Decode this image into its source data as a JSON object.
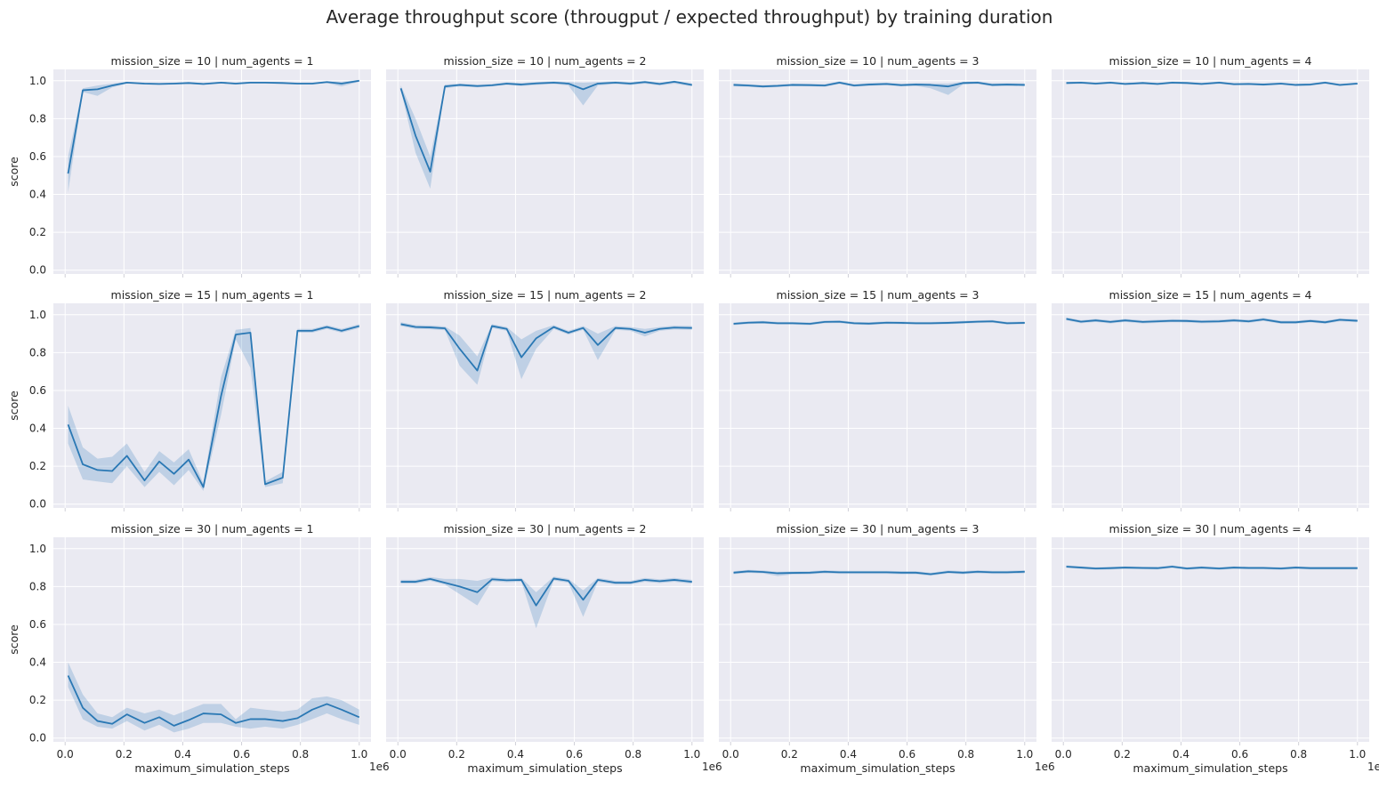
{
  "title": "Average throughput score (througput / expected throughput) by training duration",
  "colors": {
    "line": "#2a78b4",
    "band": "#2a78b4",
    "panel_bg": "#eaeaf2",
    "grid": "#ffffff"
  },
  "chart_data": {
    "type": "line",
    "xlabel": "maximum_simulation_steps",
    "ylabel": "score",
    "x_offset_label": "1e6",
    "xlim": [
      -0.04,
      1.04
    ],
    "ylim": [
      -0.02,
      1.06
    ],
    "x_ticks": [
      0.0,
      0.2,
      0.4,
      0.6,
      0.8,
      1.0
    ],
    "x_tick_labels": [
      "0.0",
      "0.2",
      "0.4",
      "0.6",
      "0.8",
      "1.0"
    ],
    "y_ticks": [
      0.0,
      0.2,
      0.4,
      0.6,
      0.8,
      1.0
    ],
    "y_tick_labels": [
      "0.0",
      "0.2",
      "0.4",
      "0.6",
      "0.8",
      "1.0"
    ],
    "x": [
      0.01,
      0.06,
      0.11,
      0.16,
      0.21,
      0.27,
      0.32,
      0.37,
      0.42,
      0.47,
      0.53,
      0.58,
      0.63,
      0.68,
      0.74,
      0.79,
      0.84,
      0.89,
      0.94,
      1.0
    ],
    "grid": true,
    "panels": [
      {
        "title": "mission_size = 10 | num_agents = 1",
        "y": [
          0.51,
          0.95,
          0.955,
          0.975,
          0.99,
          0.985,
          0.983,
          0.985,
          0.988,
          0.983,
          0.99,
          0.985,
          0.99,
          0.99,
          0.988,
          0.985,
          0.985,
          0.993,
          0.985,
          1.0
        ],
        "lo": [
          0.41,
          0.94,
          0.92,
          0.965,
          0.985,
          0.98,
          0.978,
          0.98,
          0.983,
          0.978,
          0.985,
          0.98,
          0.985,
          0.985,
          0.983,
          0.98,
          0.98,
          0.988,
          0.97,
          0.995
        ],
        "hi": [
          0.6,
          0.96,
          0.975,
          0.985,
          0.995,
          0.99,
          0.988,
          0.99,
          0.993,
          0.988,
          0.995,
          0.99,
          0.995,
          0.995,
          0.993,
          0.99,
          0.99,
          0.998,
          0.995,
          1.005
        ]
      },
      {
        "title": "mission_size = 10 | num_agents = 2",
        "y": [
          0.96,
          0.71,
          0.52,
          0.97,
          0.978,
          0.972,
          0.976,
          0.985,
          0.98,
          0.986,
          0.99,
          0.985,
          0.955,
          0.985,
          0.99,
          0.985,
          0.993,
          0.983,
          0.995,
          0.978
        ],
        "lo": [
          0.95,
          0.62,
          0.43,
          0.96,
          0.97,
          0.965,
          0.97,
          0.978,
          0.972,
          0.978,
          0.983,
          0.975,
          0.87,
          0.975,
          0.983,
          0.977,
          0.985,
          0.975,
          0.985,
          0.97
        ],
        "hi": [
          0.975,
          0.8,
          0.6,
          0.98,
          0.985,
          0.98,
          0.983,
          0.992,
          0.988,
          0.993,
          0.997,
          0.993,
          0.99,
          0.993,
          0.997,
          0.993,
          1.0,
          0.99,
          1.0,
          0.986
        ]
      },
      {
        "title": "mission_size = 10 | num_agents = 3",
        "y": [
          0.978,
          0.975,
          0.97,
          0.973,
          0.978,
          0.977,
          0.975,
          0.99,
          0.975,
          0.98,
          0.983,
          0.977,
          0.98,
          0.978,
          0.97,
          0.988,
          0.99,
          0.978,
          0.98,
          0.978
        ],
        "lo": [
          0.97,
          0.968,
          0.963,
          0.966,
          0.971,
          0.97,
          0.968,
          0.983,
          0.968,
          0.973,
          0.976,
          0.97,
          0.973,
          0.96,
          0.925,
          0.98,
          0.983,
          0.97,
          0.973,
          0.97
        ],
        "hi": [
          0.986,
          0.982,
          0.977,
          0.98,
          0.985,
          0.984,
          0.982,
          0.997,
          0.982,
          0.987,
          0.99,
          0.984,
          0.987,
          0.986,
          0.985,
          0.995,
          0.997,
          0.986,
          0.987,
          0.986
        ]
      },
      {
        "title": "mission_size = 10 | num_agents = 4",
        "y": [
          0.988,
          0.99,
          0.985,
          0.99,
          0.983,
          0.988,
          0.983,
          0.99,
          0.988,
          0.983,
          0.99,
          0.982,
          0.983,
          0.98,
          0.985,
          0.978,
          0.98,
          0.99,
          0.978,
          0.985
        ],
        "lo": [
          0.982,
          0.984,
          0.979,
          0.984,
          0.977,
          0.982,
          0.977,
          0.984,
          0.982,
          0.977,
          0.984,
          0.976,
          0.977,
          0.974,
          0.979,
          0.972,
          0.974,
          0.984,
          0.972,
          0.979
        ],
        "hi": [
          0.994,
          0.996,
          0.991,
          0.996,
          0.989,
          0.994,
          0.989,
          0.996,
          0.994,
          0.989,
          0.996,
          0.988,
          0.989,
          0.986,
          0.991,
          0.984,
          0.986,
          0.996,
          0.984,
          0.991
        ]
      },
      {
        "title": "mission_size = 15 | num_agents = 1",
        "y": [
          0.42,
          0.21,
          0.18,
          0.175,
          0.255,
          0.125,
          0.225,
          0.16,
          0.235,
          0.09,
          0.57,
          0.895,
          0.905,
          0.105,
          0.14,
          0.915,
          0.915,
          0.935,
          0.915,
          0.94
        ],
        "lo": [
          0.32,
          0.13,
          0.12,
          0.11,
          0.2,
          0.09,
          0.17,
          0.1,
          0.18,
          0.07,
          0.47,
          0.87,
          0.72,
          0.09,
          0.11,
          0.905,
          0.905,
          0.925,
          0.905,
          0.93
        ],
        "hi": [
          0.52,
          0.3,
          0.24,
          0.25,
          0.32,
          0.17,
          0.28,
          0.22,
          0.29,
          0.11,
          0.67,
          0.92,
          0.93,
          0.12,
          0.17,
          0.925,
          0.925,
          0.945,
          0.925,
          0.95
        ]
      },
      {
        "title": "mission_size = 15 | num_agents = 2",
        "y": [
          0.95,
          0.935,
          0.933,
          0.928,
          0.82,
          0.705,
          0.94,
          0.925,
          0.775,
          0.875,
          0.935,
          0.905,
          0.93,
          0.84,
          0.93,
          0.925,
          0.905,
          0.925,
          0.932,
          0.93
        ],
        "lo": [
          0.94,
          0.925,
          0.923,
          0.918,
          0.73,
          0.63,
          0.93,
          0.915,
          0.66,
          0.82,
          0.925,
          0.895,
          0.92,
          0.76,
          0.92,
          0.915,
          0.885,
          0.915,
          0.922,
          0.92
        ],
        "hi": [
          0.96,
          0.945,
          0.943,
          0.938,
          0.89,
          0.78,
          0.95,
          0.935,
          0.87,
          0.915,
          0.945,
          0.915,
          0.94,
          0.9,
          0.94,
          0.935,
          0.925,
          0.935,
          0.942,
          0.94
        ]
      },
      {
        "title": "mission_size = 15 | num_agents = 3",
        "y": [
          0.952,
          0.958,
          0.96,
          0.955,
          0.955,
          0.952,
          0.962,
          0.963,
          0.955,
          0.953,
          0.958,
          0.957,
          0.955,
          0.955,
          0.957,
          0.96,
          0.963,
          0.965,
          0.955,
          0.957
        ],
        "lo": [
          0.945,
          0.951,
          0.953,
          0.948,
          0.948,
          0.945,
          0.955,
          0.956,
          0.948,
          0.946,
          0.951,
          0.95,
          0.948,
          0.948,
          0.95,
          0.953,
          0.956,
          0.958,
          0.948,
          0.95
        ],
        "hi": [
          0.959,
          0.965,
          0.967,
          0.962,
          0.962,
          0.959,
          0.969,
          0.97,
          0.962,
          0.96,
          0.965,
          0.964,
          0.962,
          0.962,
          0.964,
          0.967,
          0.97,
          0.972,
          0.962,
          0.964
        ]
      },
      {
        "title": "mission_size = 15 | num_agents = 4",
        "y": [
          0.978,
          0.963,
          0.97,
          0.962,
          0.97,
          0.962,
          0.965,
          0.968,
          0.967,
          0.963,
          0.965,
          0.97,
          0.965,
          0.975,
          0.96,
          0.96,
          0.967,
          0.96,
          0.973,
          0.968
        ],
        "lo": [
          0.97,
          0.955,
          0.962,
          0.954,
          0.962,
          0.954,
          0.957,
          0.96,
          0.959,
          0.955,
          0.957,
          0.962,
          0.957,
          0.967,
          0.952,
          0.952,
          0.959,
          0.952,
          0.965,
          0.96
        ],
        "hi": [
          0.986,
          0.971,
          0.978,
          0.97,
          0.978,
          0.97,
          0.973,
          0.976,
          0.975,
          0.971,
          0.973,
          0.978,
          0.973,
          0.983,
          0.968,
          0.968,
          0.975,
          0.968,
          0.981,
          0.976
        ]
      },
      {
        "title": "mission_size = 30 | num_agents = 1",
        "y": [
          0.33,
          0.16,
          0.09,
          0.075,
          0.125,
          0.08,
          0.11,
          0.065,
          0.095,
          0.13,
          0.125,
          0.08,
          0.1,
          0.1,
          0.09,
          0.105,
          0.15,
          0.18,
          0.15,
          0.11
        ],
        "lo": [
          0.27,
          0.1,
          0.06,
          0.05,
          0.09,
          0.04,
          0.07,
          0.03,
          0.05,
          0.08,
          0.08,
          0.06,
          0.05,
          0.06,
          0.05,
          0.07,
          0.1,
          0.13,
          0.1,
          0.07
        ],
        "hi": [
          0.4,
          0.23,
          0.13,
          0.11,
          0.16,
          0.13,
          0.15,
          0.12,
          0.15,
          0.18,
          0.18,
          0.1,
          0.16,
          0.15,
          0.14,
          0.15,
          0.21,
          0.22,
          0.2,
          0.15
        ]
      },
      {
        "title": "mission_size = 30 | num_agents = 2",
        "y": [
          0.825,
          0.825,
          0.84,
          0.82,
          0.8,
          0.77,
          0.838,
          0.833,
          0.835,
          0.7,
          0.842,
          0.83,
          0.73,
          0.835,
          0.82,
          0.82,
          0.835,
          0.828,
          0.835,
          0.825
        ],
        "lo": [
          0.815,
          0.815,
          0.83,
          0.81,
          0.76,
          0.7,
          0.828,
          0.823,
          0.825,
          0.58,
          0.832,
          0.82,
          0.64,
          0.825,
          0.81,
          0.81,
          0.825,
          0.818,
          0.825,
          0.815
        ],
        "hi": [
          0.835,
          0.835,
          0.85,
          0.84,
          0.84,
          0.83,
          0.848,
          0.843,
          0.845,
          0.77,
          0.852,
          0.84,
          0.78,
          0.845,
          0.83,
          0.83,
          0.845,
          0.838,
          0.845,
          0.835
        ]
      },
      {
        "title": "mission_size = 30 | num_agents = 3",
        "y": [
          0.873,
          0.88,
          0.877,
          0.87,
          0.872,
          0.873,
          0.878,
          0.875,
          0.875,
          0.875,
          0.875,
          0.873,
          0.873,
          0.865,
          0.877,
          0.873,
          0.878,
          0.875,
          0.875,
          0.878
        ],
        "lo": [
          0.865,
          0.872,
          0.869,
          0.855,
          0.864,
          0.865,
          0.87,
          0.867,
          0.867,
          0.867,
          0.867,
          0.865,
          0.865,
          0.857,
          0.869,
          0.865,
          0.87,
          0.867,
          0.867,
          0.87
        ],
        "hi": [
          0.881,
          0.888,
          0.885,
          0.878,
          0.88,
          0.881,
          0.886,
          0.883,
          0.883,
          0.883,
          0.883,
          0.881,
          0.881,
          0.873,
          0.885,
          0.881,
          0.886,
          0.883,
          0.883,
          0.886
        ]
      },
      {
        "title": "mission_size = 30 | num_agents = 4",
        "y": [
          0.905,
          0.9,
          0.895,
          0.897,
          0.9,
          0.898,
          0.897,
          0.905,
          0.895,
          0.9,
          0.895,
          0.9,
          0.898,
          0.898,
          0.895,
          0.9,
          0.897,
          0.897,
          0.897,
          0.897
        ],
        "lo": [
          0.898,
          0.893,
          0.888,
          0.89,
          0.893,
          0.891,
          0.89,
          0.898,
          0.888,
          0.893,
          0.888,
          0.893,
          0.891,
          0.891,
          0.888,
          0.893,
          0.89,
          0.89,
          0.89,
          0.89
        ],
        "hi": [
          0.912,
          0.907,
          0.902,
          0.904,
          0.907,
          0.905,
          0.904,
          0.912,
          0.902,
          0.907,
          0.902,
          0.907,
          0.905,
          0.905,
          0.902,
          0.907,
          0.904,
          0.904,
          0.904,
          0.904
        ]
      }
    ]
  }
}
